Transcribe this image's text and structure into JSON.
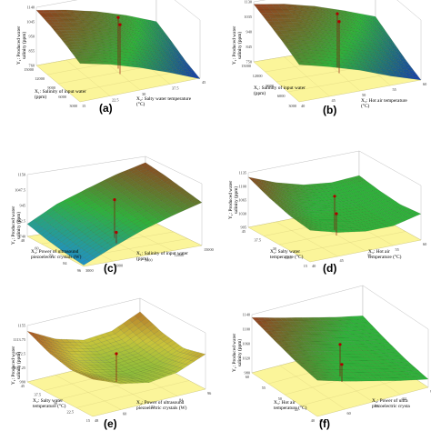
{
  "chart_data": [
    {
      "type": "surface",
      "panel_label": "(a)",
      "zlabel": [
        "Y₁: Produced water",
        "salinity (ppm)"
      ],
      "xlabel": [
        "X₁: Salinity of input water",
        "(ppm)"
      ],
      "ylabel": [
        "X₂: Salty water temperature",
        "(°C)"
      ],
      "z_ticks": [
        "1140",
        "1045",
        "950",
        "855",
        "760"
      ],
      "x_ticks": [
        "15000",
        "12000",
        "9000",
        "6000",
        "3000"
      ],
      "y_ticks": [
        "15",
        "22.5",
        "30",
        "37.5",
        "45"
      ],
      "colors": {
        "high": "#a2331c",
        "mid": "#2fb13a",
        "low": "#1536b4",
        "floor": "#fbf59a"
      },
      "surface_height": [
        [
          0.95,
          0.86,
          0.74,
          0.58,
          0.38
        ],
        [
          0.88,
          0.78,
          0.66,
          0.48,
          0.26
        ],
        [
          0.78,
          0.67,
          0.54,
          0.35,
          0.12
        ],
        [
          0.66,
          0.55,
          0.4,
          0.22,
          0.02
        ]
      ],
      "design_points_z": [
        0.88,
        0.85
      ]
    },
    {
      "type": "surface",
      "panel_label": "(b)",
      "zlabel": [
        "Y₁: Produced water",
        "salinity (ppm)"
      ],
      "xlabel": [
        "X₁: Salinity of input water",
        "(ppm)"
      ],
      "ylabel": [
        "X₃: Hot air temperature",
        "(°C)"
      ],
      "z_ticks": [
        "1130",
        "1035",
        "940",
        "845",
        "750"
      ],
      "x_ticks": [
        "15000",
        "12000",
        "9000",
        "6000",
        "3000"
      ],
      "y_ticks": [
        "40",
        "45",
        "50",
        "55",
        "60"
      ],
      "colors": {
        "high": "#a2331c",
        "mid": "#2fb13a",
        "low": "#1536b4",
        "floor": "#fbf59a"
      },
      "surface_height": [
        [
          0.96,
          0.88,
          0.76,
          0.6,
          0.42
        ],
        [
          0.86,
          0.77,
          0.64,
          0.48,
          0.28
        ],
        [
          0.75,
          0.64,
          0.5,
          0.33,
          0.14
        ],
        [
          0.62,
          0.5,
          0.36,
          0.18,
          0.03
        ]
      ],
      "design_points_z": [
        0.9,
        0.86
      ]
    },
    {
      "type": "surface",
      "panel_label": "(c)",
      "zlabel": [
        "Y₁: Produced water",
        "salinity (ppm)"
      ],
      "xlabel": [
        "X₄: Power of ultrasound",
        "piezoelectric crystals (W)"
      ],
      "ylabel": [
        "X₁: Salinity of input water",
        "(ppm)"
      ],
      "z_ticks": [
        "1150",
        "1047.5",
        "945",
        "842.5",
        "740"
      ],
      "x_ticks": [
        "48",
        "60",
        "72",
        "84",
        "96"
      ],
      "y_ticks": [
        "3000",
        "6000",
        "9000",
        "12000",
        "15000"
      ],
      "colors": {
        "high": "#a2331c",
        "mid": "#2fb13a",
        "low": "#1f8fd0",
        "floor": "#fbf59a"
      },
      "surface_height": [
        [
          0.2,
          0.45,
          0.62,
          0.78,
          0.9
        ],
        [
          0.12,
          0.38,
          0.56,
          0.72,
          0.86
        ],
        [
          0.06,
          0.3,
          0.5,
          0.66,
          0.8
        ],
        [
          0.02,
          0.24,
          0.44,
          0.6,
          0.74
        ]
      ],
      "design_points_z": [
        0.62,
        0.18
      ]
    },
    {
      "type": "surface",
      "panel_label": "(d)",
      "zlabel": [
        "Y₁: Produced water",
        "salinity (ppm)"
      ],
      "xlabel": [
        "X₂: Salty water",
        "temperature (°C)"
      ],
      "ylabel": [
        "X₃: Hot air",
        "temperature (°C)"
      ],
      "z_ticks": [
        "1135",
        "1100",
        "1065",
        "1030",
        "995"
      ],
      "x_ticks": [
        "45",
        "37.5",
        "30",
        "22.5",
        "15"
      ],
      "y_ticks": [
        "40",
        "45",
        "50",
        "55",
        "60"
      ],
      "colors": {
        "high": "#a2331c",
        "mid": "#2fb13a",
        "low": "#2fb13a",
        "floor": "#fbf59a"
      },
      "surface_height": [
        [
          0.92,
          0.72,
          0.58,
          0.52,
          0.55
        ],
        [
          0.76,
          0.58,
          0.46,
          0.42,
          0.48
        ],
        [
          0.64,
          0.48,
          0.38,
          0.36,
          0.44
        ],
        [
          0.58,
          0.44,
          0.36,
          0.36,
          0.48
        ]
      ],
      "design_points_z": [
        0.62,
        0.4
      ]
    },
    {
      "type": "surface",
      "panel_label": "(e)",
      "zlabel": [
        "Y₁: Produced water",
        "salinity (ppm)"
      ],
      "xlabel": [
        "X₂: Salty water",
        "temperature (°C)"
      ],
      "ylabel": [
        "X₄: Power of ultrasound",
        "piezoelectric crystals (W)"
      ],
      "z_ticks": [
        "1155",
        "1113.75",
        "1072.5",
        "1031.25",
        "990"
      ],
      "x_ticks": [
        "45",
        "37.5",
        "30",
        "22.5",
        "15"
      ],
      "y_ticks": [
        "48",
        "60",
        "72",
        "84",
        "96"
      ],
      "colors": {
        "high": "#a2331c",
        "mid": "#c9c43a",
        "low": "#2fb13a",
        "floor": "#fbf59a"
      },
      "surface_height": [
        [
          0.9,
          0.64,
          0.5,
          0.54,
          0.76
        ],
        [
          0.72,
          0.48,
          0.36,
          0.4,
          0.6
        ],
        [
          0.62,
          0.4,
          0.3,
          0.34,
          0.52
        ],
        [
          0.66,
          0.46,
          0.36,
          0.42,
          0.62
        ]
      ],
      "design_points_z": [
        0.5
      ]
    },
    {
      "type": "surface",
      "panel_label": "(f)",
      "zlabel": [
        "Y₁: Produced water",
        "salinity (ppm)"
      ],
      "xlabel": [
        "X₃: Hot air",
        "temperature (°C)"
      ],
      "ylabel": [
        "X₄: Power of ultra",
        "piezoelectric crysta"
      ],
      "z_ticks": [
        "1140",
        "1100",
        "1060",
        "1020",
        "980"
      ],
      "x_ticks": [
        "60",
        "55",
        "50",
        "45",
        "40"
      ],
      "y_ticks": [
        "48",
        "60",
        "72",
        "84",
        "96"
      ],
      "colors": {
        "high": "#a2331c",
        "mid": "#2fb13a",
        "low": "#2fb13a",
        "floor": "#fbf59a"
      },
      "surface_height": [
        [
          0.95,
          0.82,
          0.7,
          0.58,
          0.48
        ],
        [
          0.82,
          0.68,
          0.56,
          0.44,
          0.34
        ],
        [
          0.7,
          0.56,
          0.44,
          0.32,
          0.22
        ],
        [
          0.62,
          0.48,
          0.36,
          0.24,
          0.14
        ]
      ],
      "design_points_z": [
        0.55,
        0.3
      ]
    }
  ]
}
